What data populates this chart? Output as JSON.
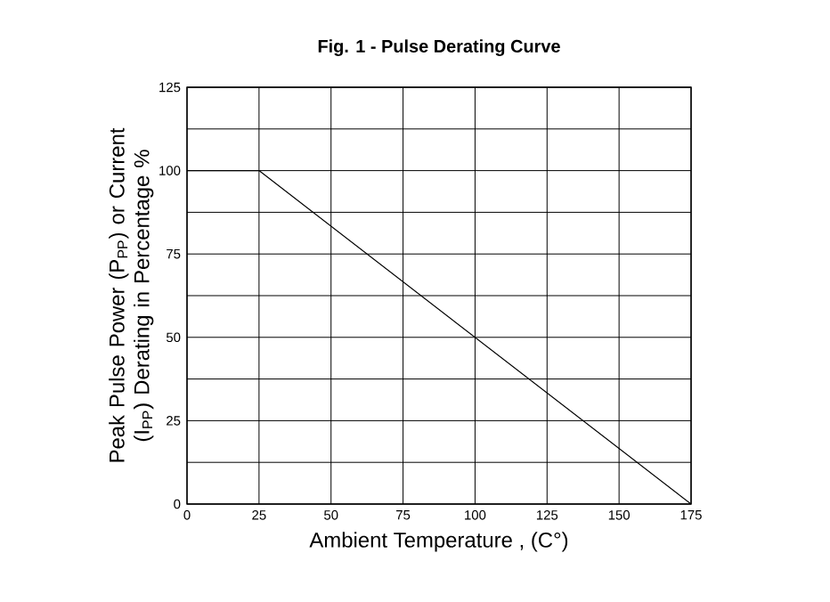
{
  "chart_data": {
    "type": "line",
    "title": "Fig. 1 - Pulse Derating Curve",
    "xlabel": "Ambient Temperature , (C°)",
    "ylabel": "Peak Pulse Power (P$_{PP}$) or Current (I$_{PP}$) Derating in Percentage %",
    "x": [
      0,
      25,
      175
    ],
    "series": [
      {
        "color": "#000000",
        "values": [
          100,
          100,
          0
        ]
      }
    ],
    "xlim": [
      0,
      175
    ],
    "ylim": [
      0,
      125
    ],
    "xticks": [
      0,
      25,
      50,
      75,
      100,
      125,
      150,
      175
    ],
    "yticks": [
      0,
      {
        "value": 12.5,
        "label": null
      },
      25,
      {
        "value": 37.5,
        "label": null
      },
      50,
      {
        "value": 62.5,
        "label": null
      },
      75,
      {
        "value": 87.5,
        "label": null
      },
      100,
      {
        "value": 112.5,
        "label": null
      },
      125
    ],
    "grid": true,
    "marker": "none",
    "line_style": "solid"
  }
}
